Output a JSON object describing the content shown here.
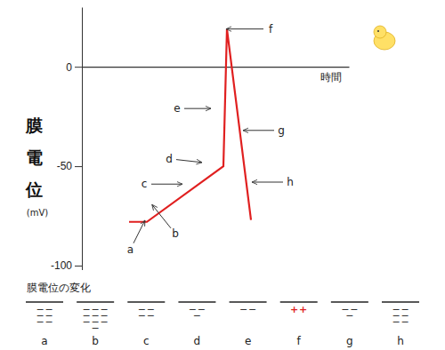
{
  "chart_data": {
    "type": "line",
    "y_label": "膜電位",
    "y_unit": "(mV)",
    "x_label": "時間",
    "x": [
      5.3,
      7.3,
      15.9,
      16.3,
      19.0
    ],
    "values": [
      -78,
      -78,
      -50,
      19,
      -77
    ],
    "color": "#e02020",
    "xlim": [
      0,
      30
    ],
    "ylim": [
      -102,
      30
    ],
    "yticks": [
      0,
      -50,
      -100
    ],
    "tick_labels": "y",
    "grid": false,
    "annotations": [
      {
        "text": "a",
        "x": 7.0,
        "y": -78
      },
      {
        "text": "b",
        "x": 8.0,
        "y": -70
      },
      {
        "text": "c",
        "x": 11.1,
        "y": -59
      },
      {
        "text": "d",
        "x": 13.3,
        "y": -48
      },
      {
        "text": "e",
        "x": 14.3,
        "y": -21
      },
      {
        "text": "f",
        "x": 16.4,
        "y": 19
      },
      {
        "text": "g",
        "x": 18.3,
        "y": -32
      },
      {
        "text": "h",
        "x": 19.3,
        "y": -58
      }
    ]
  },
  "membrane_diagram": {
    "title": "膜電位の変化",
    "panels": [
      {
        "label": "a",
        "charge": "−",
        "color": "#333333",
        "rows": [
          2,
          2,
          2
        ]
      },
      {
        "label": "b",
        "charge": "−",
        "color": "#333333",
        "rows": [
          3,
          3,
          3,
          1
        ]
      },
      {
        "label": "c",
        "charge": "−",
        "color": "#333333",
        "rows": [
          2,
          2
        ]
      },
      {
        "label": "d",
        "charge": "−",
        "color": "#333333",
        "rows": [
          2,
          1
        ]
      },
      {
        "label": "e",
        "charge": "−",
        "color": "#333333",
        "rows": [
          2
        ]
      },
      {
        "label": "f",
        "charge": "+",
        "color": "#e02020",
        "rows": [
          2
        ]
      },
      {
        "label": "g",
        "charge": "−",
        "color": "#333333",
        "rows": [
          2,
          1
        ]
      },
      {
        "label": "h",
        "charge": "−",
        "color": "#333333",
        "rows": [
          2,
          2,
          2
        ]
      }
    ]
  }
}
